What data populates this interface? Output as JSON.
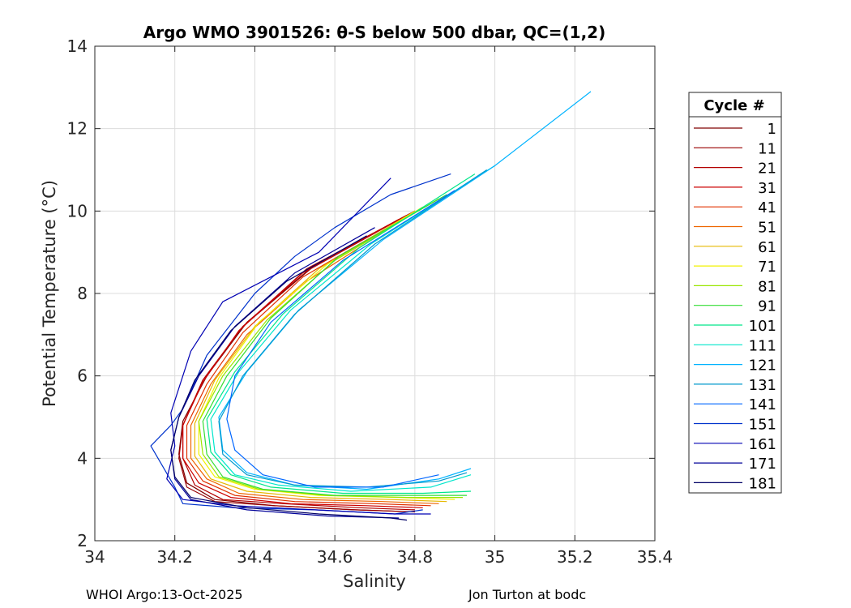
{
  "chart_data": {
    "type": "line",
    "title": "Argo WMO 3901526: θ-S below 500 dbar,  QC=(1,2)",
    "xlabel": "Salinity",
    "ylabel": "Potential Temperature (°C)",
    "xlim": [
      34,
      35.4
    ],
    "ylim": [
      2,
      14
    ],
    "xticks": [
      "34",
      "34.2",
      "34.4",
      "34.6",
      "34.8",
      "35",
      "35.2",
      "35.4"
    ],
    "yticks": [
      "2",
      "4",
      "6",
      "8",
      "10",
      "12",
      "14"
    ],
    "grid": true,
    "legend_position": "right",
    "legend_title": "Cycle #",
    "series": [
      {
        "name": "1",
        "color": "#800000",
        "x": [
          34.8,
          34.55,
          34.38,
          34.28,
          34.22,
          34.21,
          34.23,
          34.3,
          34.45,
          34.65,
          34.8
        ],
        "y": [
          10.0,
          8.7,
          7.3,
          6.0,
          4.9,
          4.1,
          3.4,
          3.0,
          2.85,
          2.75,
          2.7
        ]
      },
      {
        "name": "11",
        "color": "#990000",
        "x": [
          34.79,
          34.54,
          34.37,
          34.27,
          34.22,
          34.21,
          34.23,
          34.3,
          34.45,
          34.65,
          34.8
        ],
        "y": [
          9.95,
          8.6,
          7.2,
          5.9,
          4.8,
          4.0,
          3.3,
          2.95,
          2.85,
          2.75,
          2.7
        ]
      },
      {
        "name": "21",
        "color": "#b30000",
        "x": [
          34.78,
          34.53,
          34.37,
          34.27,
          34.22,
          34.22,
          34.25,
          34.32,
          34.47,
          34.66,
          34.8
        ],
        "y": [
          9.9,
          8.6,
          7.2,
          5.9,
          4.8,
          4.0,
          3.35,
          3.0,
          2.9,
          2.8,
          2.75
        ]
      },
      {
        "name": "31",
        "color": "#cc0000",
        "x": [
          34.76,
          34.52,
          34.36,
          34.27,
          34.22,
          34.22,
          34.26,
          34.34,
          34.49,
          34.68,
          34.82
        ],
        "y": [
          9.8,
          8.5,
          7.1,
          5.85,
          4.8,
          4.0,
          3.4,
          3.05,
          2.9,
          2.85,
          2.8
        ]
      },
      {
        "name": "41",
        "color": "#e03000",
        "x": [
          34.75,
          34.52,
          34.37,
          34.28,
          34.23,
          34.23,
          34.27,
          34.35,
          34.5,
          34.7,
          34.84
        ],
        "y": [
          9.7,
          8.4,
          7.05,
          5.8,
          4.8,
          4.0,
          3.45,
          3.1,
          2.95,
          2.9,
          2.85
        ]
      },
      {
        "name": "51",
        "color": "#ee6600",
        "x": [
          34.74,
          34.53,
          34.38,
          34.29,
          34.24,
          34.24,
          34.28,
          34.36,
          34.52,
          34.72,
          34.86
        ],
        "y": [
          9.6,
          8.3,
          7.0,
          5.8,
          4.8,
          4.0,
          3.5,
          3.15,
          3.0,
          2.95,
          2.9
        ]
      },
      {
        "name": "61",
        "color": "#e6b800",
        "x": [
          34.8,
          34.56,
          34.4,
          34.3,
          34.25,
          34.25,
          34.29,
          34.38,
          34.54,
          34.74,
          34.88
        ],
        "y": [
          10.0,
          8.6,
          7.2,
          5.9,
          4.85,
          4.05,
          3.5,
          3.2,
          3.05,
          3.0,
          2.95
        ]
      },
      {
        "name": "71",
        "color": "#f2f200",
        "x": [
          34.82,
          34.58,
          34.41,
          34.31,
          34.26,
          34.26,
          34.3,
          34.4,
          34.56,
          34.76,
          34.9
        ],
        "y": [
          10.1,
          8.7,
          7.3,
          5.95,
          4.9,
          4.1,
          3.55,
          3.25,
          3.1,
          3.05,
          3.0
        ]
      },
      {
        "name": "81",
        "color": "#99e600",
        "x": [
          34.86,
          34.6,
          34.43,
          34.32,
          34.26,
          34.27,
          34.31,
          34.41,
          34.58,
          34.78,
          34.92
        ],
        "y": [
          10.3,
          8.8,
          7.35,
          6.0,
          4.9,
          4.1,
          3.55,
          3.25,
          3.1,
          3.05,
          3.05
        ]
      },
      {
        "name": "91",
        "color": "#33dd33",
        "x": [
          34.88,
          34.61,
          34.44,
          34.33,
          34.27,
          34.28,
          34.32,
          34.42,
          34.6,
          34.8,
          34.93
        ],
        "y": [
          10.4,
          8.9,
          7.4,
          6.0,
          4.9,
          4.1,
          3.55,
          3.25,
          3.1,
          3.1,
          3.1
        ]
      },
      {
        "name": "101",
        "color": "#00e68a",
        "x": [
          34.95,
          34.66,
          34.47,
          34.35,
          34.28,
          34.29,
          34.34,
          34.44,
          34.62,
          34.82,
          34.94
        ],
        "y": [
          10.9,
          9.1,
          7.5,
          6.1,
          4.95,
          4.15,
          3.6,
          3.3,
          3.15,
          3.15,
          3.2
        ]
      },
      {
        "name": "111",
        "color": "#00e6cc",
        "x": [
          35.0,
          34.69,
          34.49,
          34.36,
          34.29,
          34.3,
          34.35,
          34.46,
          34.64,
          34.84,
          34.94
        ],
        "y": [
          11.1,
          9.2,
          7.6,
          6.1,
          4.95,
          4.15,
          3.6,
          3.35,
          3.2,
          3.3,
          3.6
        ]
      },
      {
        "name": "121",
        "color": "#00b3ff",
        "x": [
          35.24,
          35.0,
          34.72,
          34.51,
          34.38,
          34.31,
          34.32,
          34.38,
          34.5,
          34.68,
          34.86,
          34.94
        ],
        "y": [
          12.9,
          11.1,
          9.3,
          7.6,
          6.1,
          5.0,
          4.2,
          3.65,
          3.35,
          3.25,
          3.5,
          3.75
        ]
      },
      {
        "name": "131",
        "color": "#0099cc",
        "x": [
          34.98,
          34.7,
          34.5,
          34.37,
          34.31,
          34.32,
          34.38,
          34.5,
          34.68,
          34.86,
          34.93
        ],
        "y": [
          11.0,
          9.2,
          7.5,
          6.0,
          4.9,
          4.1,
          3.6,
          3.35,
          3.3,
          3.45,
          3.65
        ]
      },
      {
        "name": "141",
        "color": "#0066ff",
        "x": [
          34.9,
          34.62,
          34.44,
          34.35,
          34.33,
          34.35,
          34.42,
          34.55,
          34.72,
          34.86
        ],
        "y": [
          10.5,
          8.8,
          7.3,
          6.0,
          4.95,
          4.2,
          3.6,
          3.3,
          3.3,
          3.6
        ]
      },
      {
        "name": "151",
        "color": "#0033cc",
        "x": [
          34.89,
          34.74,
          34.6,
          34.5,
          34.4,
          34.28,
          34.22,
          34.19,
          34.14,
          34.2,
          34.22,
          34.35,
          34.55,
          34.75,
          34.82
        ],
        "y": [
          10.9,
          10.4,
          9.6,
          8.9,
          8.0,
          6.5,
          5.2,
          4.8,
          4.3,
          3.3,
          2.9,
          2.8,
          2.75,
          2.65,
          2.75
        ]
      },
      {
        "name": "161",
        "color": "#0000b3",
        "x": [
          34.74,
          34.56,
          34.32,
          34.24,
          34.22,
          34.19,
          34.2,
          34.18,
          34.22,
          34.35,
          34.55,
          34.75,
          34.84
        ],
        "y": [
          10.8,
          9.0,
          7.8,
          6.6,
          6.0,
          5.1,
          4.3,
          3.5,
          3.0,
          2.85,
          2.75,
          2.65,
          2.65
        ]
      },
      {
        "name": "171",
        "color": "#000099",
        "x": [
          34.7,
          34.5,
          34.35,
          34.26,
          34.21,
          34.19,
          34.2,
          34.24,
          34.38,
          34.58,
          34.76
        ],
        "y": [
          9.6,
          8.5,
          7.2,
          6.0,
          5.0,
          4.2,
          3.5,
          3.0,
          2.75,
          2.6,
          2.55
        ]
      },
      {
        "name": "181",
        "color": "#000066",
        "x": [
          34.68,
          34.48,
          34.34,
          34.25,
          34.21,
          34.19,
          34.2,
          34.24,
          34.38,
          34.56,
          34.74,
          34.78
        ],
        "y": [
          9.4,
          8.3,
          7.1,
          5.9,
          5.0,
          4.2,
          3.55,
          3.05,
          2.8,
          2.65,
          2.55,
          2.5
        ]
      }
    ]
  },
  "footer": {
    "left": "WHOI Argo:13-Oct-2025",
    "right": "Jon Turton at bodc"
  }
}
